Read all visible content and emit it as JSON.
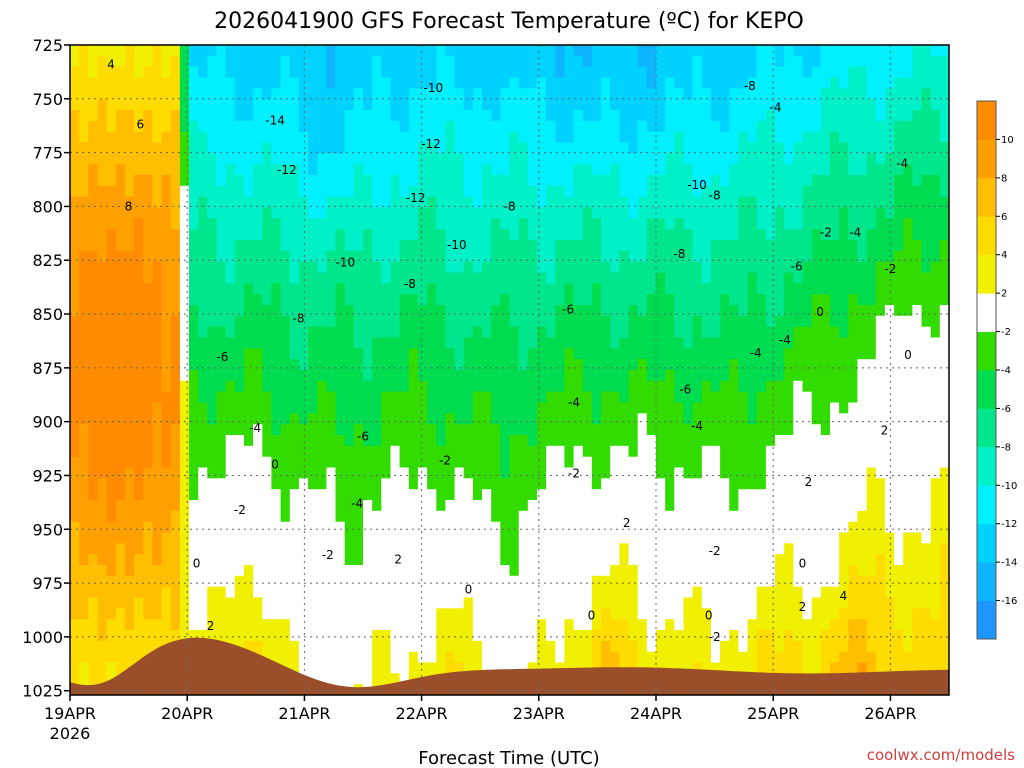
{
  "chart_data": {
    "type": "contour",
    "title": "2026041900 GFS Forecast Temperature (ºC) for KEPO",
    "xlabel": "Forecast Time (UTC)",
    "credit": "coolwx.com/models",
    "x_ticks": [
      "19APR",
      "20APR",
      "21APR",
      "22APR",
      "23APR",
      "24APR",
      "25APR",
      "26APR"
    ],
    "x_year": "2026",
    "x_range_days": [
      0,
      7.5
    ],
    "y_ticks": [
      725,
      750,
      775,
      800,
      825,
      850,
      875,
      900,
      925,
      950,
      975,
      1000,
      1025
    ],
    "y_range_hpa": [
      725,
      1027
    ],
    "colorbar": {
      "levels": [
        -18,
        -16,
        -14,
        -12,
        -10,
        -8,
        -6,
        -4,
        -2,
        2,
        4,
        6,
        8,
        10,
        12
      ],
      "labels": [
        "-16",
        "-14",
        "-12",
        "-10",
        "-8",
        "-6",
        "-4",
        "-2",
        "2",
        "4",
        "6",
        "8",
        "10"
      ],
      "colors": [
        "#1e96ff",
        "#0fb4ff",
        "#00d2ff",
        "#00f0ff",
        "#00f0c8",
        "#00e68c",
        "#00dc50",
        "#32dc00",
        "#ffffff",
        "#f0f000",
        "#ffdc00",
        "#ffbe00",
        "#ffa000",
        "#ff8c00"
      ]
    },
    "terrain_color": "#9a4f2a",
    "zero_line_color": "#c0186a",
    "contour_labels": [
      {
        "t": 0.35,
        "p": 734,
        "v": "4"
      },
      {
        "t": 0.6,
        "p": 762,
        "v": "6"
      },
      {
        "t": 0.5,
        "p": 800,
        "v": "8"
      },
      {
        "t": 1.75,
        "p": 760,
        "v": "-14"
      },
      {
        "t": 1.85,
        "p": 783,
        "v": "-12"
      },
      {
        "t": 3.1,
        "p": 745,
        "v": "-10"
      },
      {
        "t": 3.08,
        "p": 771,
        "v": "-12"
      },
      {
        "t": 2.95,
        "p": 796,
        "v": "-12"
      },
      {
        "t": 2.35,
        "p": 826,
        "v": "-10"
      },
      {
        "t": 3.3,
        "p": 818,
        "v": "-10"
      },
      {
        "t": 3.75,
        "p": 800,
        "v": "-8"
      },
      {
        "t": 2.9,
        "p": 836,
        "v": "-8"
      },
      {
        "t": 1.95,
        "p": 852,
        "v": "-8"
      },
      {
        "t": 1.3,
        "p": 870,
        "v": "-6"
      },
      {
        "t": 4.25,
        "p": 848,
        "v": "-6"
      },
      {
        "t": 5.35,
        "p": 790,
        "v": "-10"
      },
      {
        "t": 5.2,
        "p": 822,
        "v": "-8"
      },
      {
        "t": 5.5,
        "p": 795,
        "v": "-8"
      },
      {
        "t": 5.8,
        "p": 744,
        "v": "-8"
      },
      {
        "t": 6.02,
        "p": 754,
        "v": "-4"
      },
      {
        "t": 6.45,
        "p": 812,
        "v": "-2"
      },
      {
        "t": 6.7,
        "p": 812,
        "v": "-4"
      },
      {
        "t": 7.1,
        "p": 780,
        "v": "-4"
      },
      {
        "t": 7.0,
        "p": 829,
        "v": "-2"
      },
      {
        "t": 6.2,
        "p": 828,
        "v": "-6"
      },
      {
        "t": 4.3,
        "p": 891,
        "v": "-4"
      },
      {
        "t": 5.25,
        "p": 885,
        "v": "-6"
      },
      {
        "t": 5.85,
        "p": 868,
        "v": "-4"
      },
      {
        "t": 6.1,
        "p": 862,
        "v": "-4"
      },
      {
        "t": 1.58,
        "p": 903,
        "v": "-4"
      },
      {
        "t": 2.5,
        "p": 907,
        "v": "-6"
      },
      {
        "t": 2.45,
        "p": 938,
        "v": "-4"
      },
      {
        "t": 1.45,
        "p": 941,
        "v": "-2"
      },
      {
        "t": 2.2,
        "p": 962,
        "v": "-2"
      },
      {
        "t": 3.2,
        "p": 918,
        "v": "-2"
      },
      {
        "t": 4.3,
        "p": 924,
        "v": "-2"
      },
      {
        "t": 5.35,
        "p": 902,
        "v": "-4"
      },
      {
        "t": 5.5,
        "p": 960,
        "v": "-2"
      },
      {
        "t": 5.5,
        "p": 1000,
        "v": "-2"
      },
      {
        "t": 1.75,
        "p": 920,
        "v": "0"
      },
      {
        "t": 1.08,
        "p": 966,
        "v": "0"
      },
      {
        "t": 3.4,
        "p": 978,
        "v": "0"
      },
      {
        "t": 4.45,
        "p": 990,
        "v": "0"
      },
      {
        "t": 5.45,
        "p": 990,
        "v": "0"
      },
      {
        "t": 6.25,
        "p": 966,
        "v": "0"
      },
      {
        "t": 6.4,
        "p": 849,
        "v": "0"
      },
      {
        "t": 7.15,
        "p": 869,
        "v": "0"
      },
      {
        "t": 1.2,
        "p": 995,
        "v": "2"
      },
      {
        "t": 2.8,
        "p": 964,
        "v": "2"
      },
      {
        "t": 4.75,
        "p": 947,
        "v": "2"
      },
      {
        "t": 6.3,
        "p": 928,
        "v": "2"
      },
      {
        "t": 6.25,
        "p": 986,
        "v": "2"
      },
      {
        "t": 6.95,
        "p": 904,
        "v": "2"
      },
      {
        "t": 6.6,
        "p": 981,
        "v": "4"
      }
    ]
  }
}
